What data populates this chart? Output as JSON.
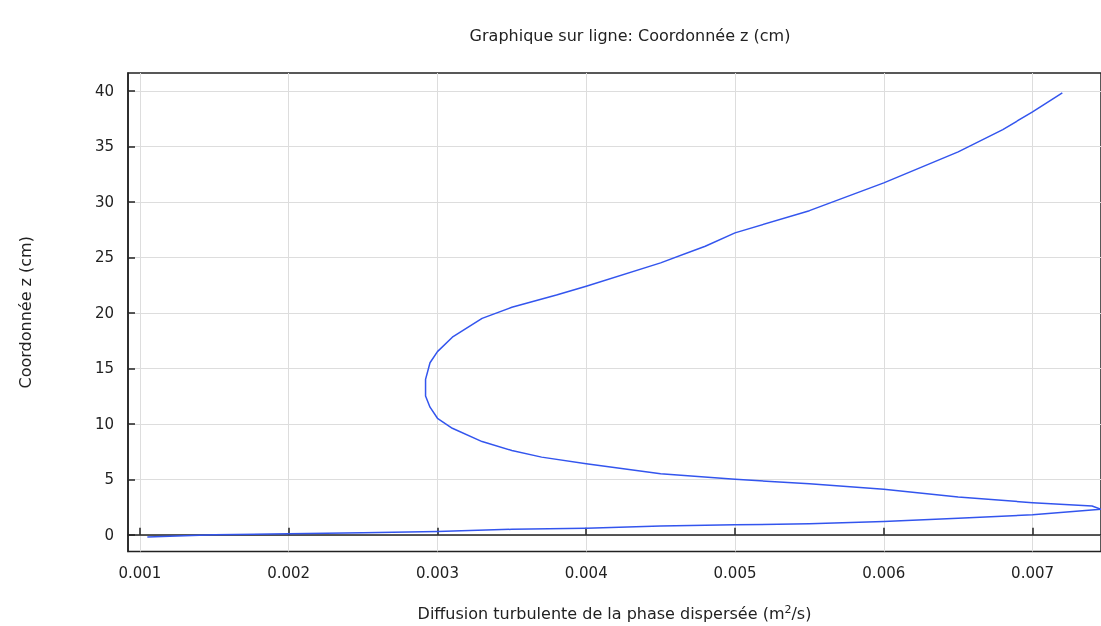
{
  "chart_data": {
    "type": "line",
    "title": "Graphique sur ligne: Coordonnée z (cm)",
    "xlabel": "Diffusion turbulente de la phase dispersée (m$^{2}$/s)",
    "ylabel": "Coordonnée z (cm)",
    "series": [
      {
        "color": "#3355ee",
        "x": [
          0.00105,
          0.0015,
          0.002,
          0.0025,
          0.003,
          0.0035,
          0.004,
          0.0045,
          0.005,
          0.0055,
          0.006,
          0.0065,
          0.007,
          0.00746,
          0.0074,
          0.007,
          0.0065,
          0.006,
          0.0055,
          0.005,
          0.0045,
          0.004,
          0.0037,
          0.0035,
          0.0033,
          0.0031,
          0.003,
          0.00295,
          0.00292,
          0.00292,
          0.00295,
          0.003,
          0.0031,
          0.0033,
          0.0035,
          0.0038,
          0.004,
          0.0045,
          0.0048,
          0.005,
          0.0055,
          0.006,
          0.0065,
          0.0068,
          0.007,
          0.0072
        ],
        "values": [
          -0.2,
          0,
          0.1,
          0.2,
          0.3,
          0.5,
          0.6,
          0.8,
          0.9,
          1.0,
          1.2,
          1.5,
          1.8,
          2.3,
          2.6,
          2.9,
          3.4,
          4.1,
          4.6,
          5.0,
          5.5,
          6.4,
          7.0,
          7.6,
          8.4,
          9.6,
          10.5,
          11.5,
          12.5,
          14,
          15.5,
          16.5,
          17.8,
          19.5,
          20.5,
          21.6,
          22.4,
          24.5,
          26,
          27.2,
          29.2,
          31.7,
          34.5,
          36.5,
          38.1,
          39.8
        ]
      }
    ],
    "xlim": [
      0.00092,
      0.00746
    ],
    "xticks": [
      0.001,
      0.002,
      0.003,
      0.004,
      0.005,
      0.006,
      0.007
    ],
    "ylim": [
      -1.5,
      41.6
    ],
    "yticks": [
      0,
      5,
      10,
      15,
      20,
      25,
      30,
      35,
      40
    ],
    "grid": true,
    "marker": "none",
    "line_style": "solid"
  }
}
